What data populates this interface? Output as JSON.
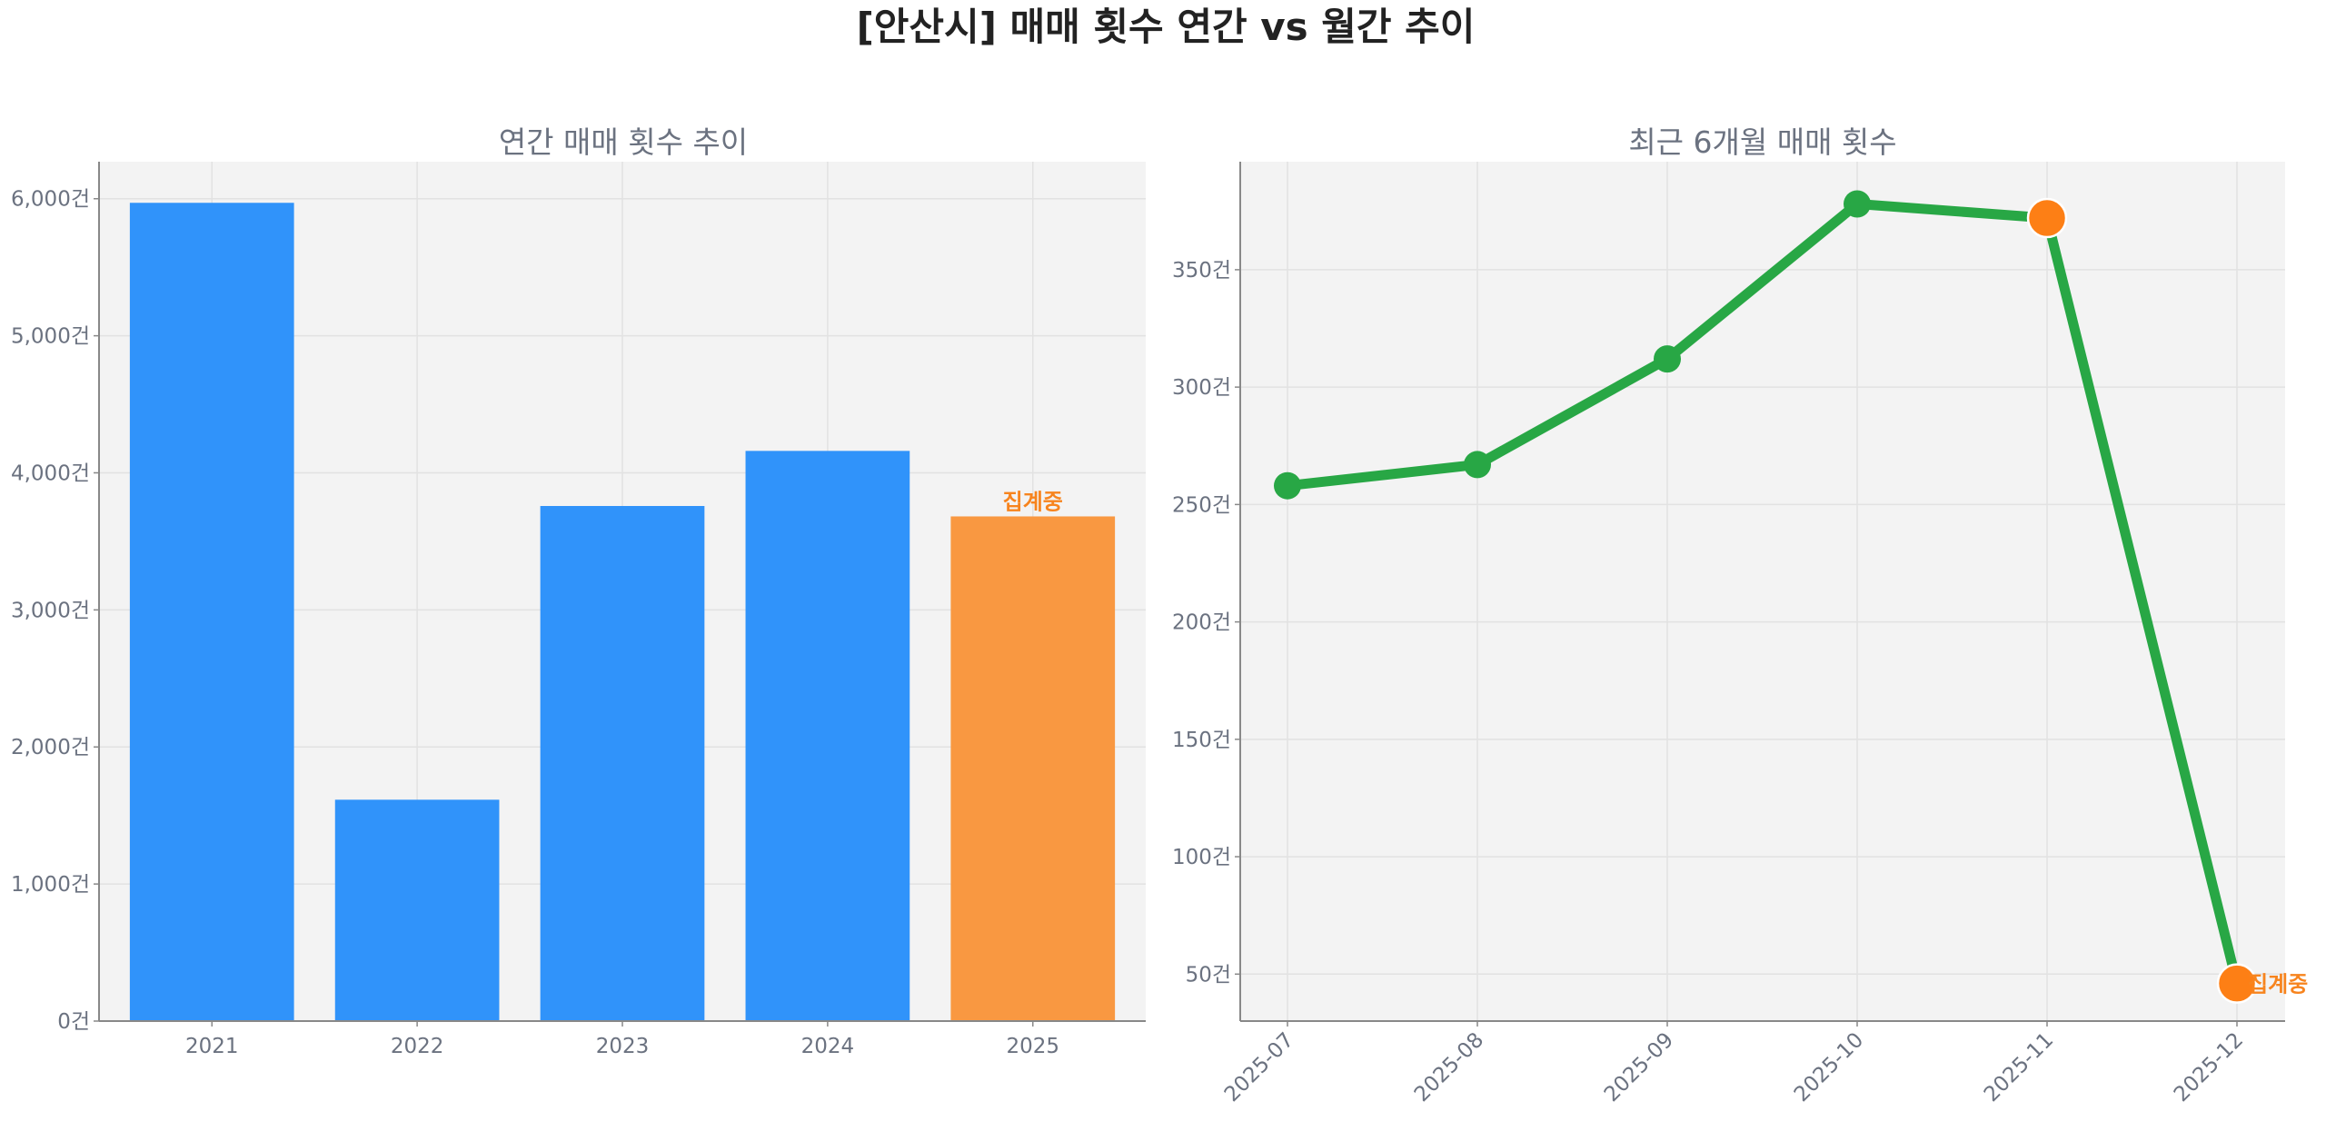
{
  "title": "[안산시] 매매 횟수 연간 vs 월간 추이",
  "colors": {
    "bar": "#3093fa",
    "bar_partial": "#f99841",
    "line": "#28a745",
    "marker_partial": "#fd7f15",
    "annotation": "#f7841e",
    "plot_bg": "#f3f3f3"
  },
  "chart_data": [
    {
      "type": "bar",
      "title": "연간 매매 횟수 추이",
      "categories": [
        "2021",
        "2022",
        "2023",
        "2024",
        "2025"
      ],
      "values": [
        5970,
        1615,
        3758,
        4160,
        3682
      ],
      "partial": [
        false,
        false,
        false,
        false,
        true
      ],
      "annotation": "집계중",
      "ylim": [
        0,
        6270
      ],
      "yticks": [
        0,
        1000,
        2000,
        3000,
        4000,
        5000,
        6000
      ],
      "ytick_labels": [
        "0건",
        "1,000건",
        "2,000건",
        "3,000건",
        "4,000건",
        "5,000건",
        "6,000건"
      ],
      "grid": true
    },
    {
      "type": "line",
      "title": "최근 6개월 매매 횟수",
      "categories": [
        "2025-07",
        "2025-08",
        "2025-09",
        "2025-10",
        "2025-11",
        "2025-12"
      ],
      "values": [
        258,
        267,
        312,
        378,
        372,
        46
      ],
      "partial": [
        false,
        false,
        false,
        false,
        true,
        true
      ],
      "annotation": "집계중",
      "ylim": [
        30,
        396
      ],
      "yticks": [
        50,
        100,
        150,
        200,
        250,
        300,
        350
      ],
      "ytick_labels": [
        "50건",
        "100건",
        "150건",
        "200건",
        "250건",
        "300건",
        "350건"
      ],
      "grid": true
    }
  ]
}
